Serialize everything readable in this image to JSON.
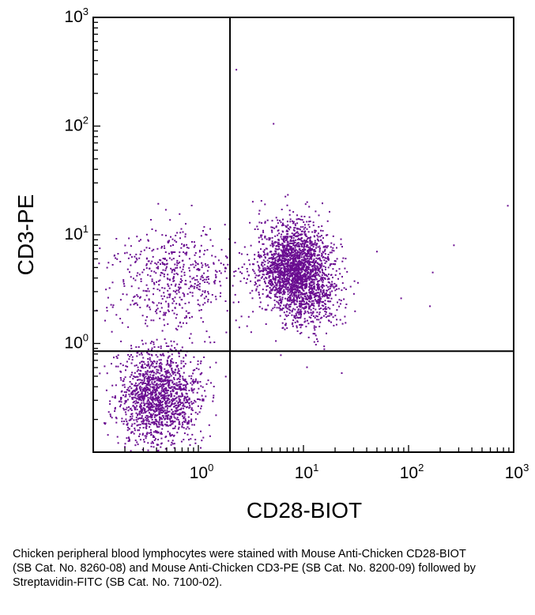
{
  "chart_data": {
    "type": "scatter",
    "subtype": "flow-cytometry-dot-plot",
    "xlabel": "CD28-BIOT",
    "ylabel": "CD3-PE",
    "xscale": "log",
    "yscale": "log",
    "xlim": [
      0.1,
      1000
    ],
    "ylim": [
      0.1,
      1000
    ],
    "x_ticks": [
      {
        "base": "10",
        "exp": "0",
        "value": 1
      },
      {
        "base": "10",
        "exp": "1",
        "value": 10
      },
      {
        "base": "10",
        "exp": "2",
        "value": 100
      },
      {
        "base": "10",
        "exp": "3",
        "value": 1000
      }
    ],
    "y_ticks": [
      {
        "base": "10",
        "exp": "0",
        "value": 1
      },
      {
        "base": "10",
        "exp": "1",
        "value": 10
      },
      {
        "base": "10",
        "exp": "2",
        "value": 100
      },
      {
        "base": "10",
        "exp": "3",
        "value": 1000
      }
    ],
    "quadrant_gates": {
      "x": 2.0,
      "y": 0.85
    },
    "point_color": "#6a0d91",
    "populations": [
      {
        "name": "CD28- CD3- (lower-left)",
        "center": [
          0.42,
          0.32
        ],
        "spread_decades": [
          0.2,
          0.22
        ],
        "count": 1500
      },
      {
        "name": "CD28+ CD3+ (upper-right core)",
        "center": [
          8.0,
          5.0
        ],
        "spread_decades": [
          0.17,
          0.2
        ],
        "count": 1900
      },
      {
        "name": "CD28+ CD3+ (upper-right tail)",
        "center": [
          12.0,
          3.0
        ],
        "spread_decades": [
          0.14,
          0.2
        ],
        "count": 500
      },
      {
        "name": "CD28- CD3+ (upper-left)",
        "center": [
          0.6,
          4.0
        ],
        "spread_decades": [
          0.3,
          0.24
        ],
        "count": 550
      }
    ],
    "scattered_events": [
      [
        2.3,
        330
      ],
      [
        5.2,
        105
      ],
      [
        880,
        18.5
      ],
      [
        270,
        8.0
      ],
      [
        160,
        2.2
      ],
      [
        85,
        2.6
      ],
      [
        50,
        7.0
      ],
      [
        170,
        4.5
      ]
    ]
  },
  "caption": "Chicken peripheral blood lymphocytes were stained with Mouse Anti-Chicken CD28-BIOT (SB Cat. No. 8260-08) and Mouse Anti-Chicken CD3-PE (SB Cat. No. 8200-09) followed by Streptavidin-FITC (SB Cat. No. 7100-02)."
}
